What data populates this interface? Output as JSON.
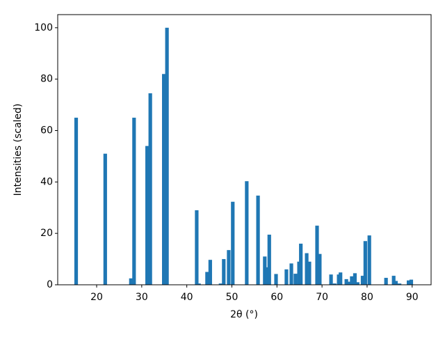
{
  "chart_data": {
    "type": "bar",
    "xlabel": "2θ (°)",
    "ylabel": "Intensities (scaled)",
    "color": "#1f77b4",
    "x": [
      15.45,
      21.9,
      27.6,
      28.3,
      31.2,
      31.9,
      34.9,
      35.6,
      42.2,
      42.7,
      44.5,
      45.2,
      47.5,
      48.2,
      49.3,
      50.2,
      53.3,
      55.8,
      57.3,
      57.8,
      58.3,
      59.8,
      62.1,
      63.2,
      64.1,
      64.9,
      65.3,
      66.6,
      67.2,
      68.9,
      69.5,
      72.0,
      72.8,
      73.7,
      74.1,
      75.4,
      76.0,
      76.6,
      77.3,
      77.9,
      79.0,
      79.6,
      80.5,
      84.2,
      85.9,
      86.4,
      87.2,
      89.2,
      89.8
    ],
    "values": [
      65,
      51,
      2.5,
      65,
      54,
      74.5,
      82,
      100,
      29,
      0.5,
      5,
      9.7,
      0.5,
      10,
      13.5,
      32.3,
      40.3,
      34.7,
      11,
      6.8,
      19.5,
      4.2,
      6,
      8.3,
      4.3,
      9,
      16,
      12.3,
      9,
      23,
      12,
      4,
      0.5,
      4,
      4.8,
      2.2,
      1.2,
      3.3,
      4.5,
      1,
      3.5,
      17,
      19.2,
      2.7,
      3.5,
      1.5,
      0.5,
      1.7,
      2
    ],
    "xlim": [
      11.36,
      94.2
    ],
    "ylim": [
      0,
      105.1
    ],
    "xticks": [
      20,
      30,
      40,
      50,
      60,
      70,
      80,
      90
    ],
    "yticks": [
      0,
      20,
      40,
      60,
      80,
      100
    ]
  }
}
